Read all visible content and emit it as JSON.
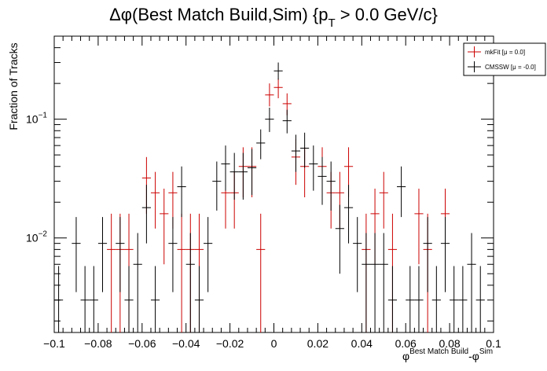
{
  "chart_data": {
    "type": "scatter",
    "title_main": "Δφ(Best Match Build,Sim) {p",
    "title_sub": "T",
    "title_tail": " > 0.0 GeV/c}",
    "ylabel": "Fraction of Tracks",
    "xlabel_phi1": "φ",
    "xlabel_sup1": "Best Match Build",
    "xlabel_mid": "-φ",
    "xlabel_sup2": "Sim",
    "xlim": [
      -0.1,
      0.1
    ],
    "ylim": [
      0.0016,
      0.5
    ],
    "yscale": "log",
    "x_ticks": [
      -0.1,
      -0.08,
      -0.06,
      -0.04,
      -0.02,
      0,
      0.02,
      0.04,
      0.06,
      0.08,
      0.1
    ],
    "x_tick_labels": [
      "−0.1",
      "−0.08",
      "−0.06",
      "−0.04",
      "−0.02",
      "0",
      "0.02",
      "0.04",
      "0.06",
      "0.08",
      "0.1"
    ],
    "y_major_ticks": [
      0.01,
      0.1
    ],
    "y_tick_labels": [
      {
        "base": "10",
        "exp": "−2"
      },
      {
        "base": "10",
        "exp": "−1"
      }
    ],
    "bin_half_width": 0.002,
    "legend_position": "top-right",
    "series": [
      {
        "name": "mkFit  [μ =  0.0]",
        "color": "#cc0000",
        "points": [
          {
            "x": -0.074,
            "y": 0.008,
            "lo": 0.0016,
            "hi": 0.016
          },
          {
            "x": -0.07,
            "y": 0.008,
            "lo": 0.0016,
            "hi": 0.016
          },
          {
            "x": -0.066,
            "y": 0.008,
            "lo": 0.0016,
            "hi": 0.016
          },
          {
            "x": -0.058,
            "y": 0.032,
            "lo": 0.016,
            "hi": 0.048
          },
          {
            "x": -0.054,
            "y": 0.024,
            "lo": 0.012,
            "hi": 0.036
          },
          {
            "x": -0.05,
            "y": 0.016,
            "lo": 0.006,
            "hi": 0.026
          },
          {
            "x": -0.046,
            "y": 0.024,
            "lo": 0.012,
            "hi": 0.036
          },
          {
            "x": -0.042,
            "y": 0.008,
            "lo": 0.0016,
            "hi": 0.016
          },
          {
            "x": -0.038,
            "y": 0.008,
            "lo": 0.0016,
            "hi": 0.016
          },
          {
            "x": -0.034,
            "y": 0.008,
            "lo": 0.0016,
            "hi": 0.016
          },
          {
            "x": -0.022,
            "y": 0.024,
            "lo": 0.012,
            "hi": 0.036
          },
          {
            "x": -0.018,
            "y": 0.024,
            "lo": 0.012,
            "hi": 0.036
          },
          {
            "x": -0.014,
            "y": 0.04,
            "lo": 0.022,
            "hi": 0.058
          },
          {
            "x": -0.01,
            "y": 0.04,
            "lo": 0.022,
            "hi": 0.058
          },
          {
            "x": -0.006,
            "y": 0.008,
            "lo": 0.0016,
            "hi": 0.016
          },
          {
            "x": -0.002,
            "y": 0.16,
            "lo": 0.128,
            "hi": 0.2
          },
          {
            "x": 0.002,
            "y": 0.185,
            "lo": 0.15,
            "hi": 0.22
          },
          {
            "x": 0.006,
            "y": 0.135,
            "lo": 0.108,
            "hi": 0.165
          },
          {
            "x": 0.01,
            "y": 0.048,
            "lo": 0.028,
            "hi": 0.068
          },
          {
            "x": 0.014,
            "y": 0.04,
            "lo": 0.022,
            "hi": 0.058
          },
          {
            "x": 0.022,
            "y": 0.04,
            "lo": 0.022,
            "hi": 0.058
          },
          {
            "x": 0.026,
            "y": 0.024,
            "lo": 0.012,
            "hi": 0.036
          },
          {
            "x": 0.03,
            "y": 0.024,
            "lo": 0.012,
            "hi": 0.036
          },
          {
            "x": 0.034,
            "y": 0.04,
            "lo": 0.022,
            "hi": 0.058
          },
          {
            "x": 0.042,
            "y": 0.008,
            "lo": 0.0016,
            "hi": 0.016
          },
          {
            "x": 0.046,
            "y": 0.016,
            "lo": 0.006,
            "hi": 0.026
          },
          {
            "x": 0.05,
            "y": 0.024,
            "lo": 0.012,
            "hi": 0.036
          },
          {
            "x": 0.054,
            "y": 0.008,
            "lo": 0.0016,
            "hi": 0.016
          },
          {
            "x": 0.066,
            "y": 0.016,
            "lo": 0.006,
            "hi": 0.026
          },
          {
            "x": 0.07,
            "y": 0.008,
            "lo": 0.0016,
            "hi": 0.016
          },
          {
            "x": 0.078,
            "y": 0.016,
            "lo": 0.006,
            "hi": 0.026
          }
        ]
      },
      {
        "name": "CMSSW  [μ = -0.0]",
        "color": "#000000",
        "points": [
          {
            "x": -0.098,
            "y": 0.003,
            "lo": 0.0016,
            "hi": 0.0058
          },
          {
            "x": -0.09,
            "y": 0.009,
            "lo": 0.0035,
            "hi": 0.015
          },
          {
            "x": -0.086,
            "y": 0.003,
            "lo": 0.0016,
            "hi": 0.0058
          },
          {
            "x": -0.082,
            "y": 0.003,
            "lo": 0.0016,
            "hi": 0.0058
          },
          {
            "x": -0.078,
            "y": 0.009,
            "lo": 0.0035,
            "hi": 0.015
          },
          {
            "x": -0.07,
            "y": 0.009,
            "lo": 0.0035,
            "hi": 0.015
          },
          {
            "x": -0.066,
            "y": 0.003,
            "lo": 0.0016,
            "hi": 0.0058
          },
          {
            "x": -0.062,
            "y": 0.006,
            "lo": 0.0016,
            "hi": 0.011
          },
          {
            "x": -0.058,
            "y": 0.018,
            "lo": 0.009,
            "hi": 0.028
          },
          {
            "x": -0.054,
            "y": 0.003,
            "lo": 0.0016,
            "hi": 0.0058
          },
          {
            "x": -0.046,
            "y": 0.009,
            "lo": 0.0035,
            "hi": 0.015
          },
          {
            "x": -0.042,
            "y": 0.027,
            "lo": 0.015,
            "hi": 0.04
          },
          {
            "x": -0.038,
            "y": 0.006,
            "lo": 0.0016,
            "hi": 0.011
          },
          {
            "x": -0.034,
            "y": 0.003,
            "lo": 0.0016,
            "hi": 0.0058
          },
          {
            "x": -0.03,
            "y": 0.009,
            "lo": 0.0035,
            "hi": 0.015
          },
          {
            "x": -0.026,
            "y": 0.03,
            "lo": 0.017,
            "hi": 0.044
          },
          {
            "x": -0.022,
            "y": 0.042,
            "lo": 0.025,
            "hi": 0.06
          },
          {
            "x": -0.018,
            "y": 0.036,
            "lo": 0.021,
            "hi": 0.052
          },
          {
            "x": -0.014,
            "y": 0.036,
            "lo": 0.021,
            "hi": 0.052
          },
          {
            "x": -0.01,
            "y": 0.039,
            "lo": 0.023,
            "hi": 0.056
          },
          {
            "x": -0.006,
            "y": 0.063,
            "lo": 0.046,
            "hi": 0.082
          },
          {
            "x": -0.002,
            "y": 0.1,
            "lo": 0.078,
            "hi": 0.125
          },
          {
            "x": 0.002,
            "y": 0.255,
            "lo": 0.215,
            "hi": 0.3
          },
          {
            "x": 0.006,
            "y": 0.097,
            "lo": 0.076,
            "hi": 0.12
          },
          {
            "x": 0.01,
            "y": 0.054,
            "lo": 0.036,
            "hi": 0.074
          },
          {
            "x": 0.014,
            "y": 0.057,
            "lo": 0.039,
            "hi": 0.077
          },
          {
            "x": 0.018,
            "y": 0.042,
            "lo": 0.025,
            "hi": 0.06
          },
          {
            "x": 0.022,
            "y": 0.033,
            "lo": 0.019,
            "hi": 0.048
          },
          {
            "x": 0.026,
            "y": 0.03,
            "lo": 0.017,
            "hi": 0.044
          },
          {
            "x": 0.03,
            "y": 0.012,
            "lo": 0.005,
            "hi": 0.019
          },
          {
            "x": 0.034,
            "y": 0.018,
            "lo": 0.009,
            "hi": 0.028
          },
          {
            "x": 0.038,
            "y": 0.009,
            "lo": 0.0035,
            "hi": 0.015
          },
          {
            "x": 0.042,
            "y": 0.006,
            "lo": 0.0016,
            "hi": 0.011
          },
          {
            "x": 0.046,
            "y": 0.006,
            "lo": 0.0016,
            "hi": 0.011
          },
          {
            "x": 0.05,
            "y": 0.006,
            "lo": 0.0016,
            "hi": 0.011
          },
          {
            "x": 0.054,
            "y": 0.003,
            "lo": 0.0016,
            "hi": 0.0058
          },
          {
            "x": 0.058,
            "y": 0.027,
            "lo": 0.015,
            "hi": 0.04
          },
          {
            "x": 0.062,
            "y": 0.003,
            "lo": 0.0016,
            "hi": 0.0058
          },
          {
            "x": 0.066,
            "y": 0.003,
            "lo": 0.0016,
            "hi": 0.0058
          },
          {
            "x": 0.07,
            "y": 0.009,
            "lo": 0.0035,
            "hi": 0.015
          },
          {
            "x": 0.074,
            "y": 0.003,
            "lo": 0.0016,
            "hi": 0.0058
          },
          {
            "x": 0.078,
            "y": 0.009,
            "lo": 0.0035,
            "hi": 0.015
          },
          {
            "x": 0.082,
            "y": 0.003,
            "lo": 0.0016,
            "hi": 0.0058
          },
          {
            "x": 0.086,
            "y": 0.003,
            "lo": 0.0016,
            "hi": 0.0058
          },
          {
            "x": 0.09,
            "y": 0.006,
            "lo": 0.0016,
            "hi": 0.011
          },
          {
            "x": 0.094,
            "y": 0.003,
            "lo": 0.0016,
            "hi": 0.0058
          }
        ]
      }
    ]
  }
}
